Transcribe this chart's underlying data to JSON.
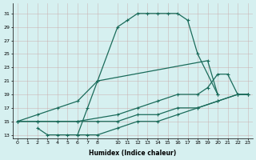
{
  "xlabel": "Humidex (Indice chaleur)",
  "ylabel": "",
  "background_color": "#d6f0f0",
  "line_color": "#1a6b5a",
  "xlim": [
    -0.5,
    23.5
  ],
  "ylim": [
    12.5,
    32.5
  ],
  "yticks": [
    13,
    15,
    17,
    19,
    21,
    23,
    25,
    27,
    29,
    31
  ],
  "xticks": [
    0,
    1,
    2,
    3,
    4,
    5,
    6,
    7,
    8,
    10,
    11,
    12,
    13,
    14,
    15,
    16,
    17,
    18,
    19,
    20,
    21,
    22,
    23
  ],
  "line1_x": [
    0,
    2,
    4,
    6,
    8,
    10,
    11,
    12,
    13,
    14,
    15,
    16,
    17,
    18,
    20
  ],
  "line1_y": [
    15,
    16,
    17,
    18,
    21,
    29,
    30,
    31,
    31,
    31,
    31,
    31,
    30,
    25,
    19
  ],
  "line2_x": [
    0,
    2,
    6,
    10,
    12,
    14,
    16,
    18,
    19,
    20,
    21,
    22,
    23
  ],
  "line2_y": [
    15,
    15,
    15,
    16,
    17,
    18,
    19,
    19,
    20,
    22,
    22,
    19,
    19
  ],
  "line3_x": [
    0,
    2,
    4,
    6,
    8,
    10,
    12,
    14,
    16,
    18,
    20,
    22,
    23
  ],
  "line3_y": [
    15,
    15,
    15,
    15,
    15,
    15,
    16,
    16,
    17,
    17,
    18,
    19,
    19
  ],
  "line4_x": [
    2,
    3,
    4,
    5,
    6,
    7,
    8,
    10,
    12,
    14,
    16,
    18,
    20,
    22,
    23
  ],
  "line4_y": [
    14,
    13,
    13,
    13,
    13,
    13,
    13,
    14,
    15,
    15,
    16,
    17,
    18,
    19,
    19
  ],
  "spike_x": [
    6,
    7,
    8,
    19,
    20
  ],
  "spike_y": [
    13,
    17,
    21,
    24,
    19
  ]
}
